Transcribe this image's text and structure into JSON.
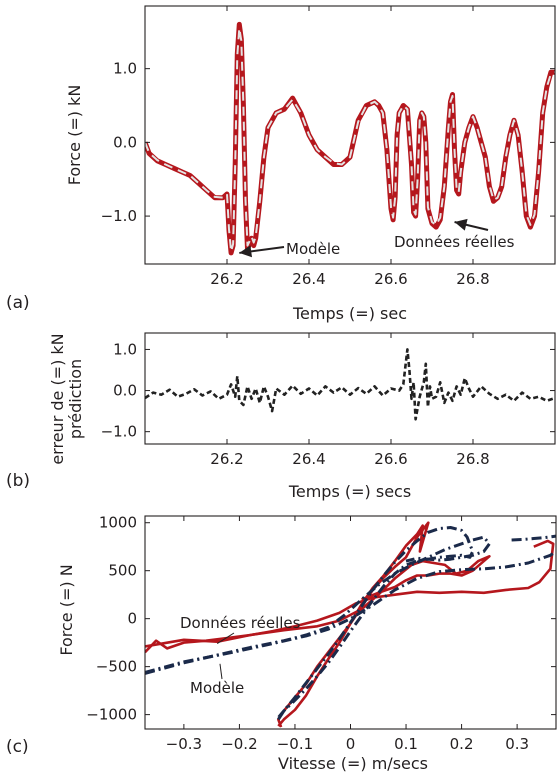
{
  "colors": {
    "measured": "#b5171d",
    "model_a": "#e3e3e3",
    "error": "#222222",
    "model_c": "#1b2a4a",
    "axis": "#231f20"
  },
  "chart_data": [
    {
      "type": "line",
      "panel": "(a)",
      "title": "",
      "xlabel": "Temps (=) sec",
      "ylabel": "Force (=) kN",
      "xlim": [
        26.0,
        27.0
      ],
      "ylim": [
        -1.65,
        1.85
      ],
      "xticks": [
        26.2,
        26.4,
        26.6,
        26.8
      ],
      "xticklabels": [
        "26.2",
        "26.4",
        "26.6",
        "26.8"
      ],
      "yticks": [
        -1.0,
        0.0,
        1.0
      ],
      "yticklabels": [
        "−1.0",
        "0.0",
        "1.0"
      ],
      "grid": false,
      "annotations": [
        {
          "text": "Modèle",
          "target": [
            26.23,
            -1.5
          ]
        },
        {
          "text": "Données réelles",
          "target": [
            26.755,
            -1.08
          ]
        }
      ],
      "series": [
        {
          "name": "Données réelles",
          "style": "solid",
          "x": [
            26.0,
            26.01,
            26.03,
            26.05,
            26.07,
            26.09,
            26.11,
            26.13,
            26.15,
            26.17,
            26.19,
            26.2,
            26.205,
            26.21,
            26.215,
            26.22,
            26.225,
            26.23,
            26.235,
            26.24,
            26.245,
            26.25,
            26.26,
            26.265,
            26.27,
            26.28,
            26.29,
            26.3,
            26.32,
            26.34,
            26.36,
            26.38,
            26.4,
            26.42,
            26.44,
            26.46,
            26.48,
            26.5,
            26.52,
            26.54,
            26.56,
            26.57,
            26.58,
            26.59,
            26.6,
            26.605,
            26.61,
            26.615,
            26.62,
            26.625,
            26.63,
            26.64,
            26.65,
            26.655,
            26.66,
            26.665,
            26.67,
            26.675,
            26.68,
            26.685,
            26.69,
            26.7,
            26.71,
            26.72,
            26.73,
            26.74,
            26.745,
            26.75,
            26.755,
            26.76,
            26.765,
            26.77,
            26.78,
            26.79,
            26.8,
            26.81,
            26.82,
            26.83,
            26.84,
            26.85,
            26.86,
            26.87,
            26.88,
            26.89,
            26.9,
            26.91,
            26.92,
            26.93,
            26.94,
            26.95,
            26.96,
            26.97,
            26.98,
            26.99,
            27.0
          ],
          "y": [
            0.0,
            -0.15,
            -0.25,
            -0.3,
            -0.35,
            -0.4,
            -0.45,
            -0.55,
            -0.65,
            -0.75,
            -0.75,
            -0.7,
            -1.2,
            -1.5,
            -1.4,
            -0.3,
            1.2,
            1.6,
            1.4,
            0.5,
            -0.8,
            -1.45,
            -1.3,
            -1.4,
            -1.3,
            -0.8,
            -0.2,
            0.2,
            0.4,
            0.45,
            0.6,
            0.4,
            0.1,
            -0.1,
            -0.2,
            -0.3,
            -0.3,
            -0.2,
            0.3,
            0.5,
            0.55,
            0.5,
            0.4,
            -0.1,
            -0.9,
            -1.05,
            -0.75,
            0.1,
            0.4,
            0.45,
            0.5,
            0.45,
            -0.3,
            -0.95,
            -1.0,
            -0.5,
            0.3,
            0.4,
            0.35,
            0.0,
            -0.9,
            -1.1,
            -1.15,
            -1.05,
            -0.6,
            0.2,
            0.55,
            0.65,
            -0.1,
            -0.65,
            -0.7,
            -0.4,
            0.0,
            0.2,
            0.35,
            0.2,
            0.0,
            -0.2,
            -0.6,
            -0.8,
            -0.75,
            -0.6,
            -0.2,
            0.1,
            0.3,
            0.1,
            -0.4,
            -1.0,
            -1.15,
            -1.0,
            -0.4,
            0.4,
            0.75,
            0.95,
            0.95
          ]
        },
        {
          "name": "Modèle",
          "style": "dashed",
          "x": [
            26.0,
            26.01,
            26.03,
            26.05,
            26.07,
            26.09,
            26.11,
            26.13,
            26.15,
            26.17,
            26.19,
            26.2,
            26.205,
            26.21,
            26.215,
            26.22,
            26.225,
            26.23,
            26.235,
            26.24,
            26.245,
            26.25,
            26.26,
            26.265,
            26.27,
            26.28,
            26.29,
            26.3,
            26.32,
            26.34,
            26.36,
            26.38,
            26.4,
            26.42,
            26.44,
            26.46,
            26.48,
            26.5,
            26.52,
            26.54,
            26.56,
            26.57,
            26.58,
            26.59,
            26.6,
            26.605,
            26.61,
            26.615,
            26.62,
            26.625,
            26.63,
            26.64,
            26.65,
            26.655,
            26.66,
            26.665,
            26.67,
            26.675,
            26.68,
            26.685,
            26.69,
            26.7,
            26.71,
            26.72,
            26.73,
            26.74,
            26.745,
            26.75,
            26.755,
            26.76,
            26.765,
            26.77,
            26.78,
            26.79,
            26.8,
            26.81,
            26.82,
            26.83,
            26.84,
            26.85,
            26.86,
            26.87,
            26.88,
            26.89,
            26.9,
            26.91,
            26.92,
            26.93,
            26.94,
            26.95,
            26.96,
            26.97,
            26.98,
            26.99,
            27.0
          ],
          "y": [
            0.0,
            -0.14,
            -0.24,
            -0.3,
            -0.35,
            -0.4,
            -0.45,
            -0.55,
            -0.65,
            -0.74,
            -0.75,
            -0.7,
            -1.18,
            -1.48,
            -1.38,
            -0.3,
            1.18,
            1.55,
            1.38,
            0.5,
            -0.78,
            -1.4,
            -1.28,
            -1.36,
            -1.28,
            -0.8,
            -0.2,
            0.2,
            0.4,
            0.45,
            0.58,
            0.4,
            0.1,
            -0.1,
            -0.2,
            -0.28,
            -0.3,
            -0.2,
            0.28,
            0.5,
            0.55,
            0.5,
            0.4,
            -0.1,
            -0.88,
            -1.02,
            -0.75,
            0.1,
            0.4,
            0.45,
            0.5,
            0.45,
            -0.3,
            -0.92,
            -0.98,
            -0.5,
            0.3,
            0.4,
            0.35,
            0.0,
            -0.88,
            -1.08,
            -1.12,
            -1.02,
            -0.6,
            0.2,
            0.55,
            0.63,
            -0.1,
            -0.63,
            -0.68,
            -0.4,
            0.0,
            0.2,
            0.35,
            0.2,
            0.0,
            -0.2,
            -0.58,
            -0.78,
            -0.75,
            -0.6,
            -0.2,
            0.1,
            0.3,
            0.1,
            -0.4,
            -0.98,
            -1.12,
            -0.98,
            -0.4,
            0.4,
            0.75,
            0.93,
            0.95
          ]
        }
      ]
    },
    {
      "type": "line",
      "panel": "(b)",
      "title": "",
      "xlabel": "Temps (=) secs",
      "ylabel": "erreur de  (=) kN",
      "ylabel2": "prédiction",
      "xlim": [
        26.0,
        27.0
      ],
      "ylim": [
        -1.3,
        1.4
      ],
      "xticks": [
        26.2,
        26.4,
        26.6,
        26.8
      ],
      "xticklabels": [
        "26.2",
        "26.4",
        "26.6",
        "26.8"
      ],
      "yticks": [
        -1.0,
        0.0,
        1.0
      ],
      "yticklabels": [
        "−1.0",
        "0.0",
        "1.0"
      ],
      "grid": false,
      "series": [
        {
          "style": "dashed",
          "x": [
            26.0,
            26.02,
            26.04,
            26.06,
            26.08,
            26.1,
            26.12,
            26.14,
            26.16,
            26.18,
            26.2,
            26.21,
            26.22,
            26.225,
            26.23,
            26.24,
            26.25,
            26.26,
            26.27,
            26.28,
            26.29,
            26.3,
            26.31,
            26.32,
            26.34,
            26.36,
            26.38,
            26.4,
            26.42,
            26.44,
            26.46,
            26.48,
            26.5,
            26.52,
            26.54,
            26.56,
            26.58,
            26.6,
            26.62,
            26.63,
            26.64,
            26.645,
            26.65,
            26.655,
            26.66,
            26.67,
            26.68,
            26.685,
            26.69,
            26.695,
            26.7,
            26.71,
            26.72,
            26.73,
            26.74,
            26.75,
            26.76,
            26.77,
            26.78,
            26.79,
            26.8,
            26.82,
            26.84,
            26.86,
            26.88,
            26.9,
            26.92,
            26.94,
            26.96,
            26.98,
            27.0
          ],
          "y": [
            -0.18,
            -0.05,
            -0.1,
            0.02,
            -0.15,
            -0.08,
            0.03,
            -0.12,
            -0.02,
            -0.2,
            -0.1,
            0.15,
            -0.15,
            0.35,
            -0.25,
            -0.35,
            0.1,
            -0.2,
            0.05,
            -0.3,
            0.1,
            -0.15,
            -0.5,
            0.05,
            -0.1,
            0.12,
            -0.08,
            0.05,
            -0.12,
            0.1,
            -0.05,
            0.08,
            -0.1,
            0.06,
            -0.08,
            0.1,
            -0.12,
            0.05,
            0.0,
            0.15,
            1.0,
            0.5,
            -0.2,
            0.2,
            -0.7,
            -0.15,
            0.2,
            0.65,
            -0.4,
            0.1,
            -0.2,
            -0.15,
            0.2,
            -0.3,
            -0.05,
            -0.25,
            0.1,
            -0.1,
            0.3,
            0.05,
            -0.15,
            0.1,
            -0.08,
            -0.2,
            -0.1,
            -0.25,
            -0.05,
            -0.2,
            -0.15,
            -0.25,
            -0.18
          ]
        }
      ]
    },
    {
      "type": "line",
      "panel": "(c)",
      "title": "",
      "xlabel": "Vitesse (=) m/secs",
      "ylabel": "Force (=)  N",
      "xlim": [
        -0.37,
        0.37
      ],
      "ylim": [
        -1150,
        1070
      ],
      "xticks": [
        -0.3,
        -0.2,
        -0.1,
        0.0,
        0.1,
        0.2,
        0.3
      ],
      "xticklabels": [
        "−0.3",
        "−0.2",
        "−0.1",
        "0",
        "0.1",
        "0.2",
        "0.3"
      ],
      "yticks": [
        -1000,
        -500,
        0,
        500,
        1000
      ],
      "yticklabels": [
        "−1000",
        "−500",
        "0",
        "500",
        "1000"
      ],
      "grid": false,
      "annotations": [
        {
          "text": "Données réelles",
          "target": [
            -0.24,
            -260
          ]
        },
        {
          "text": "Modèle",
          "target": [
            -0.235,
            -470
          ]
        }
      ],
      "series": [
        {
          "name": "Données réelles",
          "style": "solid",
          "x": [
            -0.37,
            -0.35,
            -0.33,
            -0.3,
            -0.26,
            -0.22,
            -0.18,
            -0.14,
            -0.1,
            -0.06,
            -0.02,
            0.01,
            0.04,
            0.08,
            0.12,
            0.16,
            0.2,
            0.24,
            0.28,
            0.32,
            0.34,
            0.36,
            0.365,
            0.355,
            0.33
          ],
          "y": [
            -350,
            -230,
            -310,
            -250,
            -230,
            -200,
            -170,
            -130,
            -80,
            -20,
            60,
            160,
            220,
            250,
            280,
            270,
            280,
            270,
            300,
            320,
            380,
            520,
            780,
            810,
            750
          ]
        },
        {
          "name": "Données réelles",
          "style": "solid",
          "x": [
            -0.13,
            -0.12,
            -0.1,
            -0.08,
            -0.06,
            -0.04,
            -0.02,
            0.0,
            0.02,
            0.04,
            0.06,
            0.08,
            0.1,
            0.12,
            0.13,
            0.125,
            0.14,
            0.12,
            0.1,
            0.08,
            0.06,
            0.04,
            0.02,
            0.0,
            -0.02,
            -0.04,
            -0.06,
            -0.08,
            -0.1,
            -0.12,
            -0.13,
            -0.125
          ],
          "y": [
            -1120,
            -1050,
            -950,
            -800,
            -600,
            -420,
            -250,
            -50,
            150,
            320,
            450,
            600,
            760,
            880,
            970,
            700,
            1000,
            850,
            640,
            540,
            430,
            300,
            120,
            -50,
            -200,
            -350,
            -500,
            -680,
            -820,
            -960,
            -1050,
            -1130
          ]
        },
        {
          "name": "Données réelles",
          "style": "solid",
          "x": [
            -0.37,
            -0.3,
            -0.24,
            -0.18,
            -0.12,
            -0.06,
            -0.02,
            0.02,
            0.05,
            0.08,
            0.11,
            0.13,
            0.15,
            0.17,
            0.19,
            0.21,
            0.23,
            0.25,
            0.22,
            0.2,
            0.18,
            0.16,
            0.14,
            0.12,
            0.1,
            0.08,
            0.05,
            0.02
          ],
          "y": [
            -290,
            -220,
            -240,
            -170,
            -120,
            -80,
            -20,
            100,
            250,
            420,
            560,
            600,
            580,
            560,
            470,
            500,
            600,
            650,
            500,
            450,
            470,
            470,
            450,
            450,
            400,
            330,
            270,
            200
          ]
        },
        {
          "name": "Modèle",
          "style": "dashdot",
          "x": [
            -0.37,
            -0.3,
            -0.24,
            -0.18,
            -0.12,
            -0.08,
            -0.04,
            -0.01,
            0.02,
            0.05,
            0.08,
            0.11,
            0.14,
            0.17,
            0.2,
            0.22,
            0.24,
            0.25,
            0.24,
            0.22,
            0.2,
            0.18,
            0.16,
            0.14,
            0.12,
            0.1
          ],
          "y": [
            -570,
            -460,
            -380,
            -300,
            -230,
            -170,
            -90,
            40,
            200,
            350,
            470,
            560,
            640,
            720,
            780,
            820,
            850,
            780,
            700,
            660,
            640,
            620,
            610,
            620,
            630,
            600
          ]
        },
        {
          "name": "Modèle",
          "style": "dashdot",
          "x": [
            -0.13,
            -0.12,
            -0.1,
            -0.08,
            -0.06,
            -0.04,
            -0.02,
            0.0,
            0.02,
            0.04,
            0.06,
            0.08,
            0.1,
            0.12,
            0.14,
            0.16,
            0.18,
            0.2,
            0.21,
            0.22,
            0.215,
            0.2,
            0.18,
            0.16,
            0.14,
            0.12,
            0.1,
            0.08,
            0.06,
            0.04,
            0.02,
            0.0,
            -0.02,
            -0.04,
            -0.06,
            -0.08,
            -0.1,
            -0.12,
            -0.13
          ],
          "y": [
            -1050,
            -960,
            -820,
            -670,
            -520,
            -370,
            -210,
            -40,
            130,
            300,
            450,
            590,
            710,
            810,
            900,
            940,
            950,
            920,
            850,
            700,
            640,
            660,
            650,
            640,
            620,
            600,
            560,
            470,
            340,
            190,
            30,
            -130,
            -300,
            -460,
            -600,
            -730,
            -850,
            -960,
            -1030
          ]
        },
        {
          "name": "Modèle",
          "style": "dashdot",
          "x": [
            0.29,
            0.31,
            0.33,
            0.35,
            0.37
          ],
          "y": [
            820,
            825,
            835,
            845,
            860
          ]
        },
        {
          "name": "Modèle",
          "style": "dashdot",
          "x": [
            -0.37,
            -0.3,
            -0.22,
            -0.14,
            -0.08,
            -0.04,
            0.0,
            0.04,
            0.08,
            0.12,
            0.16,
            0.2,
            0.24,
            0.28,
            0.32,
            0.36,
            0.37
          ],
          "y": [
            -560,
            -450,
            -360,
            -260,
            -180,
            -110,
            0,
            140,
            300,
            420,
            490,
            510,
            520,
            540,
            580,
            660,
            700
          ]
        }
      ]
    }
  ]
}
